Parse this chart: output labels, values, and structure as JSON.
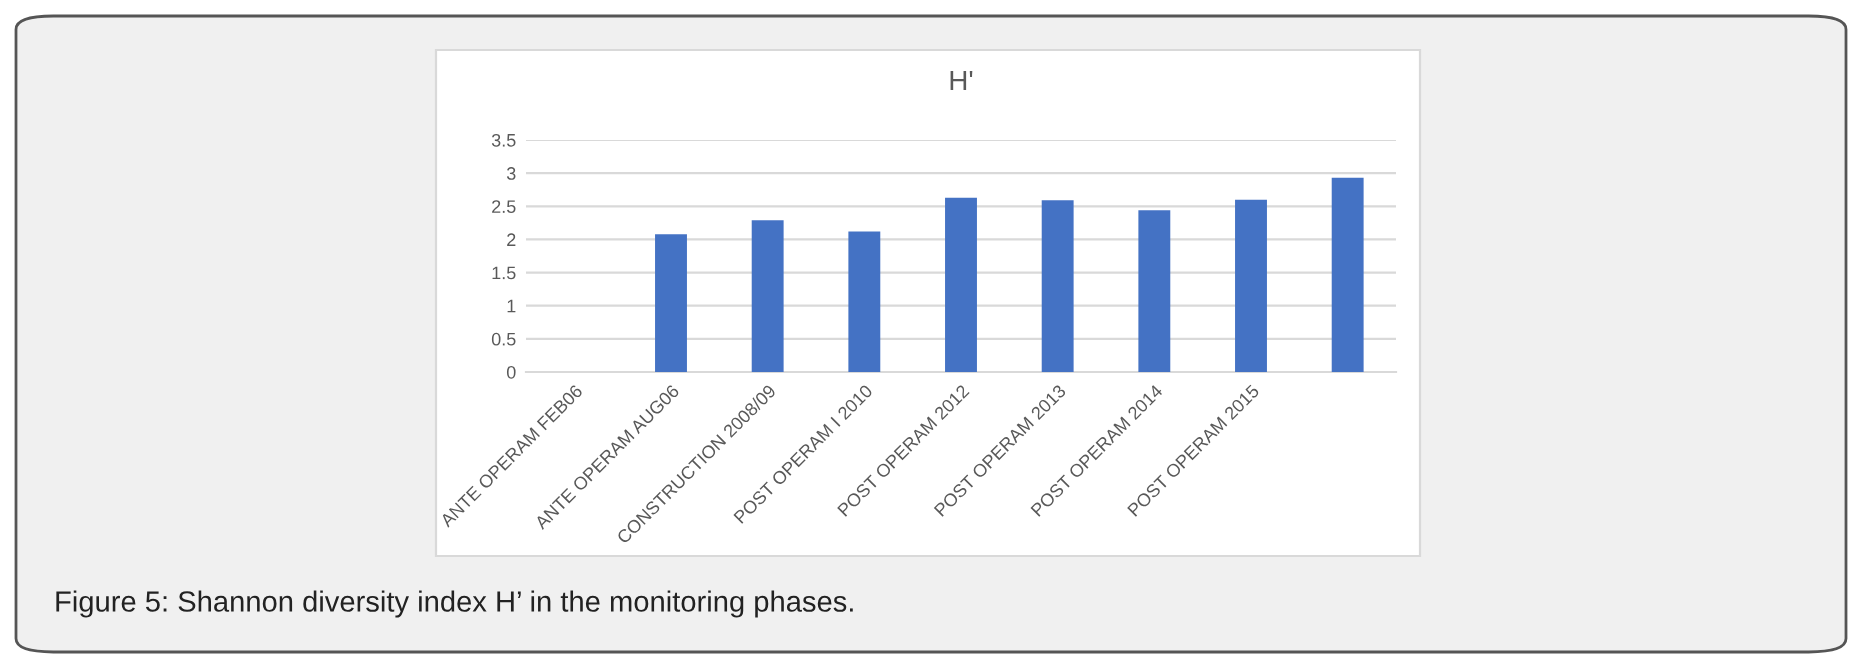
{
  "chart_data": {
    "type": "bar",
    "title": "H'",
    "categories": [
      "ANTE OPERAM FEB06",
      "ANTE OPERAM AUG06",
      "CONSTRUCTION 2008/09",
      "POST OPERAM I 2010",
      "POST OPERAM 2012",
      "POST OPERAM 2013",
      "POST OPERAM 2014",
      "POST OPERAM 2015",
      null
    ],
    "values": [
      null,
      2.08,
      2.29,
      2.12,
      2.63,
      2.59,
      2.44,
      2.6,
      2.93
    ],
    "color": "#4472c4",
    "ylim": [
      0,
      3.5
    ],
    "yticks": [
      0,
      0.5,
      1,
      1.5,
      2,
      2.5,
      3,
      3.5
    ],
    "grid": "y",
    "annotations": [
      "Figure 5: Shannon diversity index H’ in the monitoring phases."
    ]
  }
}
